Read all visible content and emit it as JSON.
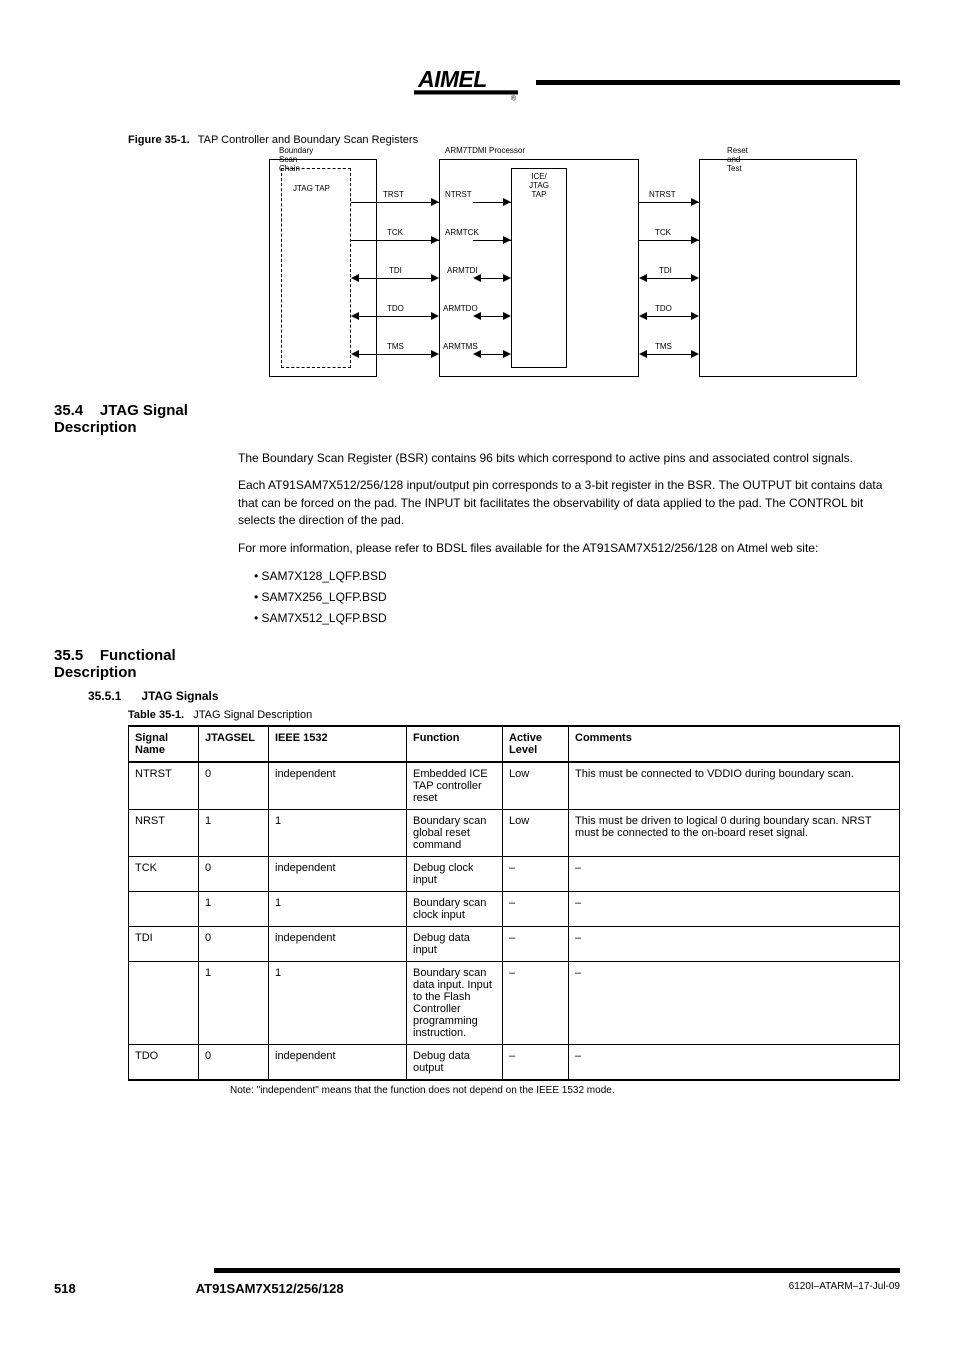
{
  "colors": {
    "text": "#000000",
    "bg": "#ffffff",
    "rule": "#000000"
  },
  "logo": {
    "name": "Atmel",
    "registered": "®"
  },
  "figure": {
    "label": "Figure 35-1.",
    "title": "TAP Controller and Boundary Scan Registers"
  },
  "diagram": {
    "left_box": {
      "title": "Boundary Scan Chain",
      "tap_label": "JTAG TAP",
      "signals": [
        "TRST",
        "TCK",
        "TDI",
        "TDO",
        "TMS"
      ]
    },
    "mid_box": {
      "title": "ARM7TDMI Processor",
      "inner": {
        "title": "ICE/JTAG TAP",
        "signals": [
          "NTRST",
          "ARMTCK",
          "ARMTDI",
          "ARMTDO",
          "ARMTMS"
        ]
      }
    },
    "right_box": {
      "title": "Reset and Test",
      "signals": [
        "NTRST",
        "TCK",
        "TDI",
        "TDO",
        "TMS"
      ]
    }
  },
  "sec_jtag": {
    "heading": "35.4",
    "title": "JTAG Signal Description",
    "para1": "The Boundary Scan Register (BSR) contains 96 bits which correspond to active pins and associated control signals.",
    "para2": "Each AT91SAM7X512/256/128 input/output pin corresponds to a 3-bit register in the BSR. The OUTPUT bit contains data that can be forced on the pad. The INPUT bit facilitates the observability of data applied to the pad. The CONTROL bit selects the direction of the pad.",
    "sample_lead": "For more information, please refer to BDSL files available for the AT91SAM7X512/256/128 on Atmel web site:",
    "bullets": [
      "SAM7X128_LQFP.BSD",
      "SAM7X256_LQFP.BSD",
      "SAM7X512_LQFP.BSD"
    ]
  },
  "sec_func": {
    "heading": "35.5",
    "title": "Functional Description",
    "sub_heading": "35.5.1",
    "sub_title": "JTAG Signals",
    "table_label": "Table 35-1.",
    "table_title": "JTAG Signal Description",
    "cols": [
      "Signal Name",
      "JTAGSEL",
      "IEEE 1532",
      "Function",
      "Active Level",
      "Comments"
    ],
    "rows": [
      [
        "NTRST",
        "0",
        "independent",
        "Embedded ICE TAP controller reset",
        "Low",
        "This must be connected to VDDIO during boundary scan."
      ],
      [
        "NRST",
        "1",
        "1",
        "Boundary scan global reset command",
        "Low",
        "This must be driven to logical 0 during boundary scan. NRST must be connected to the on-board reset signal."
      ],
      [
        "TCK",
        "0",
        "independent",
        "Debug clock input",
        "–",
        "–"
      ],
      [
        "",
        "1",
        "1",
        "Boundary scan clock input",
        "–",
        "–"
      ],
      [
        "TDI",
        "0",
        "independent",
        "Debug data input",
        "–",
        "–"
      ],
      [
        "",
        "1",
        "1",
        "Boundary scan data input. Input to the Flash Controller programming instruction.",
        "–",
        "–"
      ],
      [
        "TDO",
        "0",
        "independent",
        "Debug data output",
        "–",
        "–"
      ]
    ],
    "note": "Note: \"independent\" means that the function does not depend on the IEEE 1532 mode."
  },
  "footer": {
    "page": "518",
    "doc": "AT91SAM7X512/256/128",
    "code": "6120I–ATARM–17-Jul-09"
  }
}
